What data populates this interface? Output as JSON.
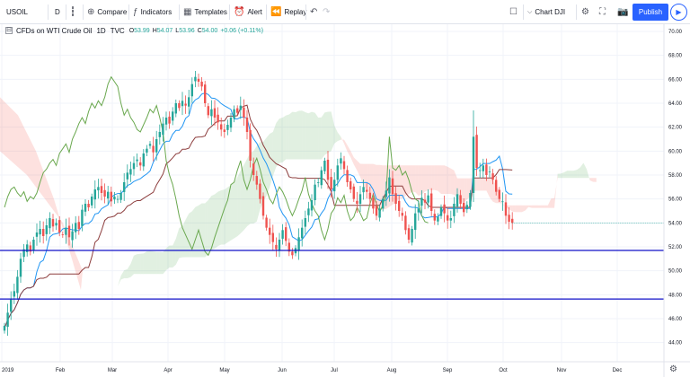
{
  "toolbar": {
    "symbol": "USOIL",
    "interval": "D",
    "compare": "Compare",
    "indicators": "Indicators",
    "templates": "Templates",
    "alert": "Alert",
    "replay": "Replay",
    "chart_name": "Chart DJI",
    "publish": "Publish"
  },
  "legend": {
    "title": "CFDs on WTI Crude Oil",
    "interval": "1D",
    "source": "TVC",
    "open": "53.99",
    "high": "54.07",
    "low": "53.96",
    "close": "54.00",
    "change": "+0.06 (+0.11%)"
  },
  "icons": [
    "candles-icon",
    "plus-circle-icon",
    "indicators-icon",
    "templates-icon",
    "alarm-icon",
    "replay-icon",
    "undo-icon",
    "redo-icon",
    "layout-icon",
    "gear-icon",
    "fullscreen-icon",
    "camera-icon",
    "play-icon"
  ],
  "colors": {
    "up": "#26a69a",
    "down": "#ef5350",
    "hline": "#1010c8",
    "tenkan": "#2196f3",
    "kijun": "#8d3e3e",
    "chikou": "#6aa84f"
  },
  "chart_data": {
    "type": "candlestick",
    "y_ticks": [
      "70.00",
      "68.00",
      "66.00",
      "64.00",
      "62.00",
      "60.00",
      "58.00",
      "56.00",
      "54.00",
      "52.00",
      "50.00",
      "48.00",
      "46.00",
      "44.00"
    ],
    "x_ticks": [
      "2019",
      "Feb",
      "Mar",
      "Apr",
      "May",
      "Jun",
      "Jul",
      "Aug",
      "Sep",
      "Oct",
      "Nov",
      "Dec"
    ],
    "ylim": [
      42.4,
      70.6
    ],
    "last_price": "54.00",
    "horizontal_lines": [
      {
        "label": "51.70",
        "value": 51.7
      },
      {
        "label": "47.64",
        "value": 47.64
      }
    ],
    "closes": [
      45.4,
      46.5,
      47.6,
      48.3,
      49.5,
      51.0,
      51.8,
      52.2,
      51.6,
      52.6,
      53.2,
      53.5,
      52.9,
      53.8,
      54.4,
      53.7,
      54.0,
      53.2,
      53.0,
      53.6,
      52.8,
      53.3,
      54.0,
      53.5,
      55.1,
      55.6,
      55.3,
      56.2,
      56.8,
      57.0,
      56.5,
      56.2,
      56.6,
      55.8,
      56.2,
      56.0,
      56.5,
      57.4,
      58.2,
      58.5,
      59.0,
      59.3,
      58.8,
      59.8,
      60.2,
      60.6,
      59.9,
      61.0,
      61.6,
      62.3,
      62.8,
      62.3,
      63.3,
      64.0,
      63.6,
      64.2,
      63.8,
      64.5,
      65.6,
      66.2,
      65.8,
      65.4,
      64.0,
      63.0,
      63.5,
      62.8,
      62.4,
      61.8,
      61.6,
      62.2,
      62.8,
      63.5,
      63.2,
      63.8,
      62.8,
      61.6,
      59.2,
      58.0,
      57.2,
      56.0,
      54.6,
      53.6,
      53.0,
      52.4,
      51.8,
      52.6,
      53.4,
      52.5,
      51.6,
      51.3,
      51.9,
      52.8,
      53.6,
      54.4,
      55.2,
      55.9,
      57.2,
      57.4,
      58.4,
      59.2,
      57.6,
      56.8,
      57.6,
      58.8,
      59.4,
      58.5,
      57.4,
      56.8,
      56.0,
      55.6,
      56.4,
      57.0,
      56.6,
      56.0,
      55.2,
      54.6,
      55.2,
      56.0,
      56.7,
      57.8,
      56.4,
      55.6,
      55.0,
      54.6,
      53.4,
      52.6,
      53.5,
      54.8,
      55.2,
      56.1,
      55.7,
      56.3,
      55.0,
      54.2,
      54.5,
      55.3,
      54.8,
      54.2,
      54.4,
      55.6,
      56.4,
      55.6,
      54.9,
      55.5,
      56.5,
      61.2,
      58.6,
      58.4,
      58.8,
      58.0,
      58.3,
      57.6,
      56.6,
      56.0,
      55.8,
      54.6,
      54.1,
      54.0
    ],
    "plot_area": {
      "x_start": "2019-01-01",
      "x_end": "2019-12-31"
    }
  }
}
